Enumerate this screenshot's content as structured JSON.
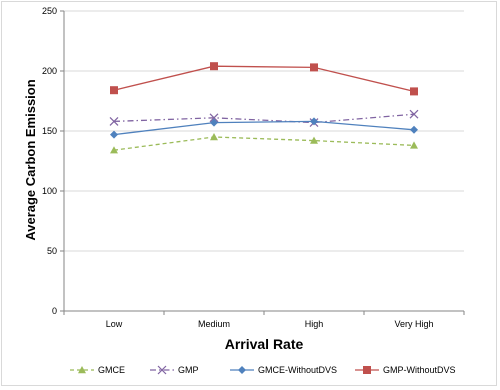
{
  "chart_data": {
    "type": "line",
    "title": "",
    "xlabel": "Arrival Rate",
    "ylabel": "Average Carbon Emission",
    "categories": [
      "Low",
      "Medium",
      "High",
      "Very High"
    ],
    "ylim": [
      0,
      250
    ],
    "yticks": [
      0,
      50,
      100,
      150,
      200,
      250
    ],
    "grid": "horizontal",
    "legend": "bottom",
    "series": [
      {
        "name": "GMCE",
        "values": [
          134,
          145,
          142,
          138
        ],
        "color": "#9bbb59",
        "marker": "triangle",
        "dash": "dashed"
      },
      {
        "name": "GMP",
        "values": [
          158,
          161,
          157,
          164
        ],
        "color": "#8064a2",
        "marker": "x",
        "dash": "dashdot"
      },
      {
        "name": "GMCE-WithoutDVS",
        "values": [
          147,
          157,
          158,
          151
        ],
        "color": "#4f81bd",
        "marker": "diamond",
        "dash": "solid"
      },
      {
        "name": "GMP-WithoutDVS",
        "values": [
          184,
          204,
          203,
          183
        ],
        "color": "#c0504d",
        "marker": "square",
        "dash": "solid"
      }
    ]
  }
}
